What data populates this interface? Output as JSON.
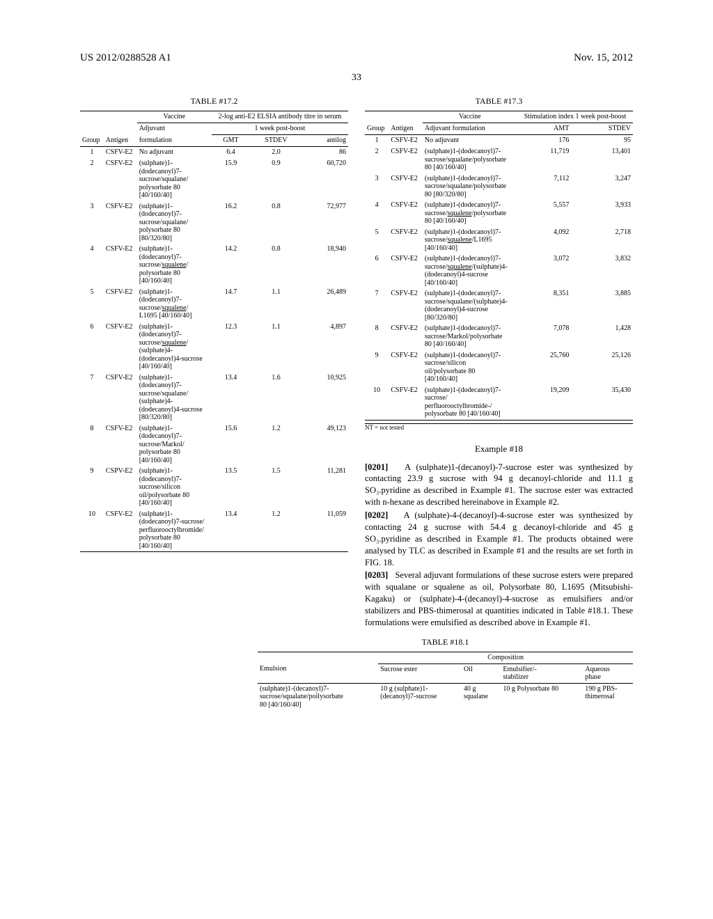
{
  "header": {
    "left": "US 2012/0288528 A1",
    "right": "Nov. 15, 2012"
  },
  "page_number": "33",
  "table_17_2": {
    "caption": "TABLE #17.2",
    "group_header_top": "Vaccine",
    "group_header_right": "2-log anti-E2 ELSIA antibody titre in serum",
    "sub_right": "1 week post-boost",
    "columns": {
      "c1": "Group",
      "c2": "Antigen",
      "c3": "Adjuvant",
      "c3b": "formulation",
      "c4": "GMT",
      "c5": "STDEV",
      "c6": "antilog"
    },
    "rows": [
      {
        "g": "1",
        "a": "CSFV-E2",
        "adj": "No adjuvant",
        "gmt": "6.4",
        "sd": "2.0",
        "al": "86"
      },
      {
        "g": "2",
        "a": "CSFV-E2",
        "adj": "(sulphate)1-\n(dodecanoyl)7-\nsucrose/squalane/\npolysorbate 80\n[40/160/40]",
        "gmt": "15.9",
        "sd": "0.9",
        "al": "60,720"
      },
      {
        "g": "3",
        "a": "CSFV-E2",
        "adj": "(sulphate)1-\n(dodecanoyl)7-\nsucrose/squalane/\npolysorbate 80\n[80/320/80]",
        "gmt": "16.2",
        "sd": "0.8",
        "al": "72,977"
      },
      {
        "g": "4",
        "a": "CSFV-E2",
        "adj": "(sulphate)1-\n(dodecanoyl)7-\nsucrose/",
        "sq": "squalene",
        "adj2": "/\npolysorbate 80\n[40/160/40]",
        "gmt": "14.2",
        "sd": "0.8",
        "al": "18,940"
      },
      {
        "g": "5",
        "a": "CSFV-E2",
        "adj": "(sulphate)1-\n(dodecanoyl)7-\nsucrose/",
        "sq": "squalene",
        "adj2": "/\nL1695 [40/160/40]",
        "gmt": "14.7",
        "sd": "1.1",
        "al": "26,489"
      },
      {
        "g": "6",
        "a": "CSFV-E2",
        "adj": "(sulphate)1-\n(dodecanoyl)7-\nsucrose/",
        "sq": "squalene",
        "adj2": "/\n(sulphate)4-\n(dodecanoyl)4-sucrose\n[40/160/40]",
        "gmt": "12.3",
        "sd": "1.1",
        "al": "4,897"
      },
      {
        "g": "7",
        "a": "CSFV-E2",
        "adj": "(sulphate)1-\n(dodecanoyl)7-\nsucrose/squalane/\n(sulphate)4-\n(dodecanoyl)4-sucrose\n[80/320/80]",
        "gmt": "13.4",
        "sd": "1.6",
        "al": "10,925"
      },
      {
        "g": "8",
        "a": "CSFV-E2",
        "adj": "(sulphate)1-\n(dodecanoyl)7-\nsucrose/Markol/\npolysorbate 80\n[40/160/40]",
        "gmt": "15.6",
        "sd": "1.2",
        "al": "49,123"
      },
      {
        "g": "9",
        "a": "CSPV-E2",
        "adj": "(sulphate)1-\n(dodecanoyl)7-\nsucrose/silicon\noil/polysorbate 80\n[40/160/40]",
        "gmt": "13.5",
        "sd": "1.5",
        "al": "11,281"
      },
      {
        "g": "10",
        "a": "CSFV-E2",
        "adj": "(sulphate)1-\n(dodecanoyl)7-sucrose/\nperfluorooctylbromide/\npolysorbate 80\n[40/160/40]",
        "gmt": "13.4",
        "sd": "1.2",
        "al": "11,059"
      }
    ]
  },
  "table_17_3": {
    "caption": "TABLE #17.3",
    "group_header_top": "Vaccine",
    "group_header_right": "Stimulation index 1 week post-boost",
    "columns": {
      "c1": "Group",
      "c2": "Antigen",
      "c3": "Adjuvant formulation",
      "c4": "AMT",
      "c5": "STDEV"
    },
    "rows": [
      {
        "g": "1",
        "a": "CSFV-E2",
        "adj": "No adjuvant",
        "amt": "176",
        "sd": "95"
      },
      {
        "g": "2",
        "a": "CSFV-E2",
        "adj": "(sulphate)1-(dodecanoyl)7-\nsucrose/squalane/polysorbate\n80 [40/160/40]",
        "amt": "11,719",
        "sd": "13,401"
      },
      {
        "g": "3",
        "a": "CSFV-E2",
        "adj": "(sulphate)1-(dodecanoyl)7-\nsucrose/squalane/polysorbate\n80 [80/320/80]",
        "amt": "7,112",
        "sd": "3,247"
      },
      {
        "g": "4",
        "a": "CSFV-E2",
        "adj": "(sulphate)1-(dodecanoyl)7-\nsucrose/",
        "sq": "squalene",
        "adj2": "/polysorbate\n80 [40/160/40]",
        "amt": "5,557",
        "sd": "3,933"
      },
      {
        "g": "5",
        "a": "CSFV-E2",
        "adj": "(sulphate)1-(dodecanoyl)7-\nsucrose/",
        "sq": "squalene",
        "adj2": "/L1695\n[40/160/40]",
        "amt": "4,092",
        "sd": "2,718"
      },
      {
        "g": "6",
        "a": "CSFV-E2",
        "adj": "(sulphate)1-(dodecanoyl)7-\nsucrose/",
        "sq": "squalene",
        "adj2": "/(sulphate)4-\n(dodecanoyl)4-sucrose\n[40/160/40]",
        "amt": "3,072",
        "sd": "3,832"
      },
      {
        "g": "7",
        "a": "CSFV-E2",
        "adj": "(sulphate)1-(dodecanoyl)7-\nsucrose/squalane/(sulphate)4-\n(dodecanoyl)4-sucrose\n[80/320/80]",
        "amt": "8,351",
        "sd": "3,885"
      },
      {
        "g": "8",
        "a": "CSFV-E2",
        "adj": "(sulphate)1-(dodecanoyl)7-\nsucrose/Markol/polysorbate\n80 [40/160/40]",
        "amt": "7,078",
        "sd": "1,428"
      },
      {
        "g": "9",
        "a": "CSFV-E2",
        "adj": "(sulphate)1-(dodecanoyl)7-\nsucrose/silicon\noil/polysorbate 80\n[40/160/40]",
        "amt": "25,760",
        "sd": "25,126"
      },
      {
        "g": "10",
        "a": "CSFV-E2",
        "adj": "(sulphate)1-(dodecanoyl)7-\nsucrose/\nperfluorooctylbromide-/\npolysorbate 80 [40/160/40]",
        "amt": "19,209",
        "sd": "35,430"
      }
    ],
    "footnote": "NT = not tested"
  },
  "example_18": {
    "title": "Example #18",
    "p1_num": "[0201]",
    "p1": "A (sulphate)1-(decanoyl)-7-sucrose ester was synthesized by contacting 23.9 g sucrose with 94 g decanoyl-chloride and 11.1 g SO₃.pyridine as described in Example #1. The sucrose ester was extracted with n-hexane as described hereinabove in Example #2.",
    "p2_num": "[0202]",
    "p2": "A (sulphate)-4-(decanoyl)-4-sucrose ester was synthesized by contacting 24 g sucrose with 54.4 g decanoyl-chloride and 45 g SO₃.pyridine as described in Example #1. The products obtained were analysed by TLC as described in Example #1 and the results are set forth in FIG. 18.",
    "p3_num": "[0203]",
    "p3": "Several adjuvant formulations of these sucrose esters were prepared with squalane or squalene as oil, Polysorbate 80, L1695 (Mitsubishi-Kagaku) or (sulphate)-4-(decanoyl)-4-sucrose as emulsifiers and/or stabilizers and PBS-thimerosal at quantities indicated in Table #18.1. These formulations were emulsified as described above in Example #1."
  },
  "table_18_1": {
    "caption": "TABLE #18.1",
    "span_header": "Composition",
    "columns": {
      "c1": "Emulsion",
      "c2": "Sucrose ester",
      "c3": "Oil",
      "c4": "Emulsifier/-\nstabilizer",
      "c5": "Aqueous\nphase"
    },
    "rows": [
      {
        "c1": "(sulphate)1-(decanoyl)7-\nsucrose/squalane/poilysorbate\n80 [40/160/40]",
        "c2": "10 g (sulphate)1-\n(decanoyl)7-sucrose",
        "c3": "40 g\nsqualane",
        "c4": "10 g Polysorbate 80",
        "c5": "190 g PBS-\nthimerosal"
      }
    ]
  }
}
